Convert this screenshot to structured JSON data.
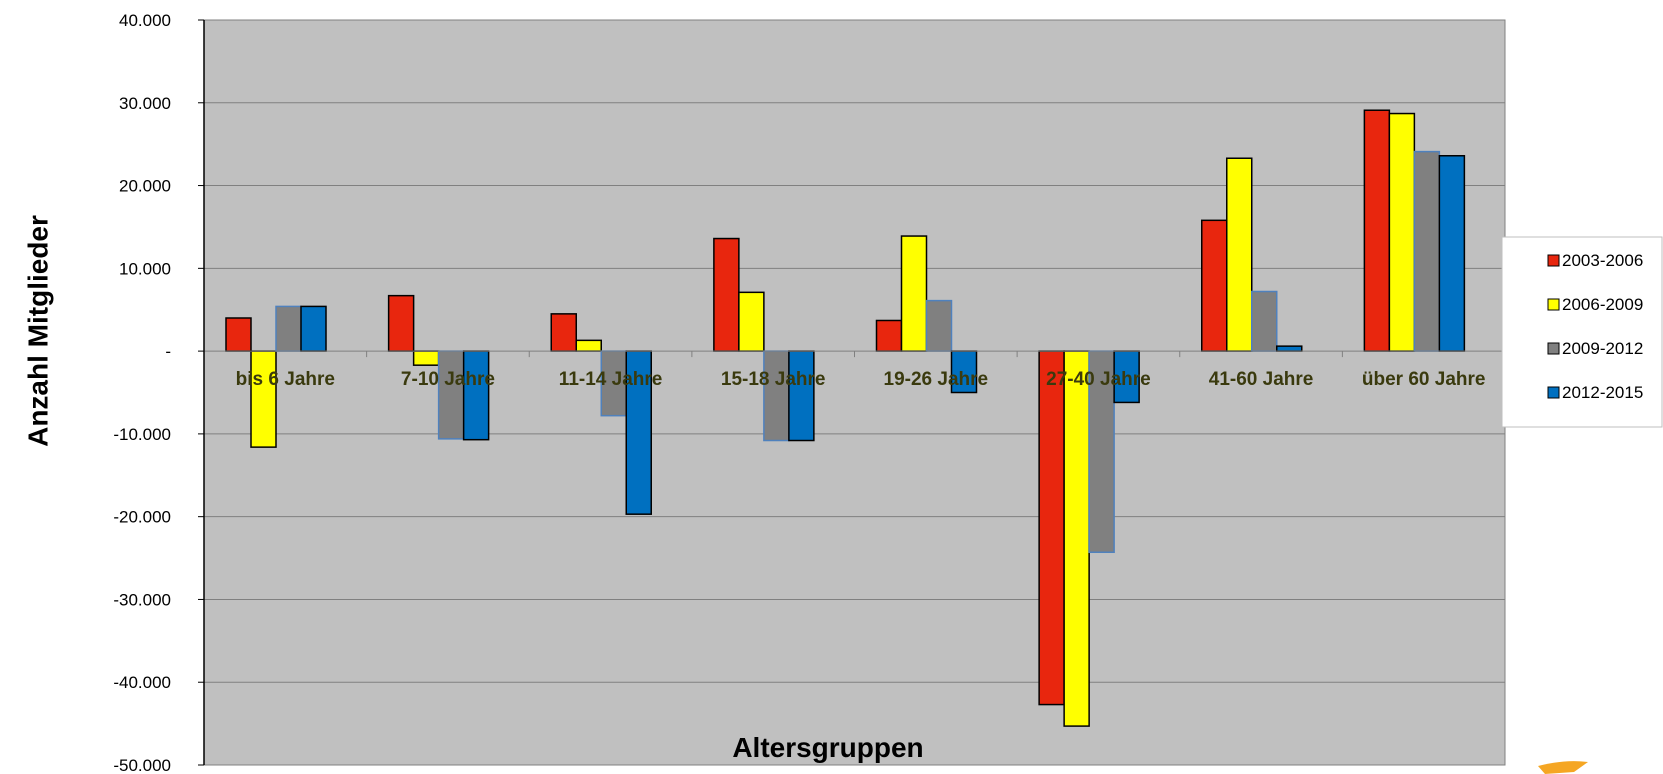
{
  "chart_data": {
    "type": "bar",
    "title": "",
    "xlabel": "Altersgruppen",
    "ylabel": "Anzahl Mitglieder",
    "ylim": [
      -50000,
      40000
    ],
    "y_ticks": [
      {
        "value": 40000,
        "label": "40.000"
      },
      {
        "value": 30000,
        "label": "30.000"
      },
      {
        "value": 20000,
        "label": "20.000"
      },
      {
        "value": 10000,
        "label": "10.000"
      },
      {
        "value": 0,
        "label": "-"
      },
      {
        "value": -10000,
        "label": "-10.000"
      },
      {
        "value": -20000,
        "label": "-20.000"
      },
      {
        "value": -30000,
        "label": "-30.000"
      },
      {
        "value": -40000,
        "label": "-40.000"
      },
      {
        "value": -50000,
        "label": "-50.000"
      }
    ],
    "categories": [
      "bis 6 Jahre",
      "7-10 Jahre",
      "11-14 Jahre",
      "15-18 Jahre",
      "19-26 Jahre",
      "27-40 Jahre",
      "41-60 Jahre",
      "über 60 Jahre"
    ],
    "series": [
      {
        "name": "2003-2006",
        "color": "#e8260e",
        "values": [
          4000,
          6700,
          4500,
          13600,
          3700,
          -42700,
          15800,
          29100
        ]
      },
      {
        "name": "2006-2009",
        "color": "#ffff00",
        "values": [
          -11600,
          -1700,
          1300,
          7100,
          13900,
          -45300,
          23300,
          28700
        ]
      },
      {
        "name": "2009-2012",
        "color": "#808080",
        "values": [
          5400,
          -10600,
          -7800,
          -10800,
          6100,
          -24300,
          7200,
          24100
        ]
      },
      {
        "name": "2012-2015",
        "color": "#0070c0",
        "values": [
          5400,
          -10700,
          -19700,
          -10800,
          -5000,
          -6200,
          600,
          23600
        ]
      }
    ],
    "grid": true,
    "legend_position": "right",
    "plot_background": "#c0c0c0"
  }
}
